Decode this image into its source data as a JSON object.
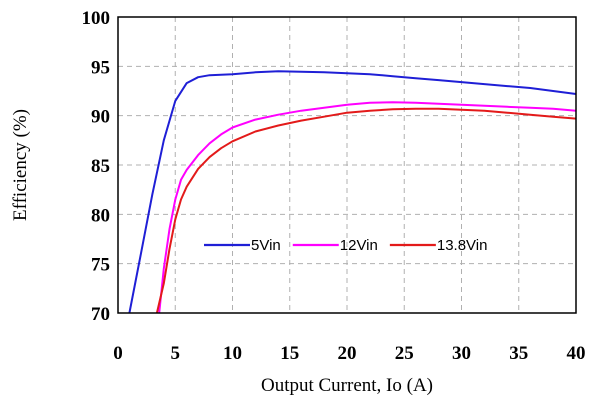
{
  "chart_data": {
    "type": "line",
    "title": "",
    "xlabel": "Output Current, Io (A)",
    "ylabel": "Efficiency (%)",
    "xlim": [
      0,
      40
    ],
    "ylim": [
      70,
      100
    ],
    "xticks": [
      "0",
      "5",
      "10",
      "15",
      "20",
      "25",
      "30",
      "35",
      "40"
    ],
    "yticks": [
      "70",
      "75",
      "80",
      "85",
      "90",
      "95",
      "100"
    ],
    "grid": true,
    "legend_position": "center-right",
    "series": [
      {
        "name": "5Vin",
        "color": "#1f1fd6",
        "x": [
          1,
          2,
          3,
          4,
          5,
          6,
          7,
          8,
          10,
          12,
          14,
          16,
          18,
          20,
          22,
          24,
          26,
          28,
          30,
          32,
          34,
          36,
          38,
          40
        ],
        "y": [
          70,
          76,
          82,
          87.5,
          91.5,
          93.3,
          93.9,
          94.1,
          94.2,
          94.4,
          94.5,
          94.45,
          94.4,
          94.3,
          94.2,
          94.0,
          93.8,
          93.6,
          93.4,
          93.2,
          93.0,
          92.8,
          92.5,
          92.2
        ]
      },
      {
        "name": "12Vin",
        "color": "#ff00ff",
        "x": [
          3.6,
          4,
          4.5,
          5,
          5.5,
          6,
          7,
          8,
          9,
          10,
          12,
          14,
          16,
          18,
          20,
          22,
          24,
          26,
          28,
          30,
          32,
          34,
          36,
          38,
          40
        ],
        "y": [
          70,
          74.5,
          78.5,
          81.5,
          83.5,
          84.5,
          86.0,
          87.2,
          88.1,
          88.8,
          89.6,
          90.1,
          90.5,
          90.8,
          91.1,
          91.3,
          91.35,
          91.3,
          91.2,
          91.1,
          91.0,
          90.9,
          90.8,
          90.7,
          90.5
        ]
      },
      {
        "name": "13.8Vin",
        "color": "#e31a1a",
        "x": [
          3.4,
          4,
          4.5,
          5,
          5.5,
          6,
          7,
          8,
          9,
          10,
          12,
          14,
          16,
          18,
          20,
          22,
          24,
          26,
          28,
          30,
          32,
          34,
          36,
          38,
          40
        ],
        "y": [
          70,
          73,
          76.5,
          79.5,
          81.5,
          82.8,
          84.6,
          85.8,
          86.7,
          87.4,
          88.4,
          89.0,
          89.5,
          89.9,
          90.3,
          90.5,
          90.65,
          90.7,
          90.7,
          90.6,
          90.5,
          90.3,
          90.1,
          89.9,
          89.7
        ]
      }
    ]
  }
}
